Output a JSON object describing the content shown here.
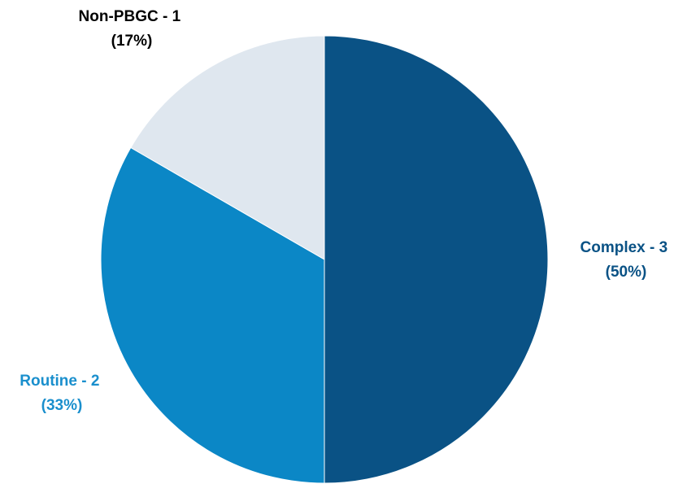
{
  "chart_data": {
    "type": "pie",
    "slices": [
      {
        "category": "Complex",
        "value": 3,
        "percent": "50%",
        "label_line1": "Complex - 3",
        "label_line2": "(50%)",
        "color": "#0a5285",
        "label_color": "#0a5285"
      },
      {
        "category": "Routine",
        "value": 2,
        "percent": "33%",
        "label_line1": "Routine - 2",
        "label_line2": "(33%)",
        "color": "#0b87c6",
        "label_color": "#1a8fcd"
      },
      {
        "category": "Non-PBGC",
        "value": 1,
        "percent": "17%",
        "label_line1": "Non-PBGC - 1",
        "label_line2": "(17%)",
        "color": "#dfe7ef",
        "label_color": "#000000"
      }
    ],
    "start_angle": "12 o'clock",
    "direction": "clockwise",
    "legend": "none",
    "title": ""
  }
}
